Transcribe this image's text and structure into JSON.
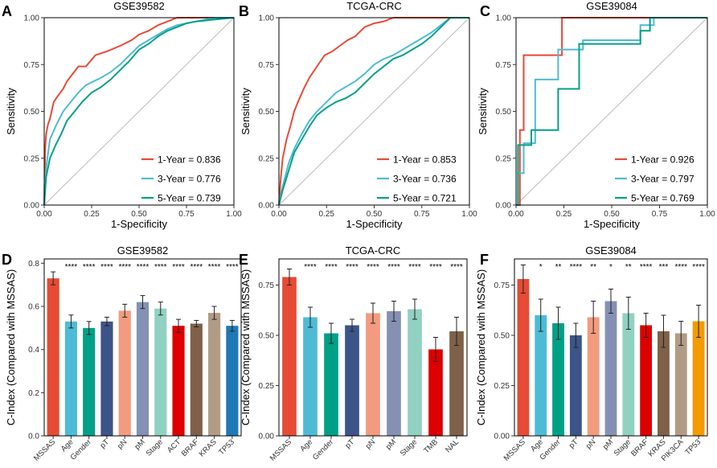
{
  "figure_labels": [
    "A",
    "B",
    "C",
    "D",
    "E",
    "F"
  ],
  "colors": {
    "roc_1yr": "#E64B35",
    "roc_3yr": "#4DBBD5",
    "roc_5yr": "#00A087",
    "diagonal": "#BBBBBB"
  },
  "chart_data": [
    {
      "id": "A",
      "type": "line",
      "title": "GSE39582",
      "xlabel": "1-Specificity",
      "ylabel": "Sensitivity",
      "xlim": [
        0,
        1
      ],
      "ylim": [
        0,
        1
      ],
      "xticks": [
        "0.00",
        "0.25",
        "0.50",
        "0.75",
        "1.00"
      ],
      "yticks": [
        "0.00",
        "0.25",
        "0.50",
        "0.75",
        "1.00"
      ],
      "legend_position": "bottom-right",
      "series": [
        {
          "name": "1-Year = 0.836",
          "color": "#E64B35",
          "x": [
            0,
            0.005,
            0.01,
            0.02,
            0.03,
            0.05,
            0.07,
            0.1,
            0.12,
            0.15,
            0.18,
            0.22,
            0.27,
            0.33,
            0.4,
            0.46,
            0.5,
            0.55,
            0.6,
            0.65,
            0.7,
            0.75,
            1.0
          ],
          "y": [
            0,
            0.3,
            0.38,
            0.43,
            0.46,
            0.55,
            0.58,
            0.62,
            0.66,
            0.7,
            0.74,
            0.74,
            0.8,
            0.82,
            0.85,
            0.88,
            0.91,
            0.93,
            0.96,
            0.98,
            1.0,
            1.0,
            1.0
          ]
        },
        {
          "name": "3-Year = 0.776",
          "color": "#4DBBD5",
          "x": [
            0,
            0.01,
            0.03,
            0.06,
            0.1,
            0.14,
            0.18,
            0.22,
            0.26,
            0.3,
            0.35,
            0.4,
            0.45,
            0.5,
            0.55,
            0.6,
            0.65,
            0.7,
            0.75,
            0.8,
            0.9,
            1.0
          ],
          "y": [
            0,
            0.2,
            0.35,
            0.42,
            0.5,
            0.55,
            0.6,
            0.64,
            0.66,
            0.68,
            0.71,
            0.75,
            0.8,
            0.85,
            0.88,
            0.91,
            0.94,
            0.96,
            0.97,
            0.98,
            1.0,
            1.0
          ]
        },
        {
          "name": "5-Year = 0.739",
          "color": "#00A087",
          "x": [
            0,
            0.01,
            0.03,
            0.06,
            0.09,
            0.12,
            0.16,
            0.2,
            0.25,
            0.3,
            0.35,
            0.4,
            0.45,
            0.5,
            0.55,
            0.6,
            0.65,
            0.7,
            0.75,
            0.8,
            0.9,
            1.0
          ],
          "y": [
            0,
            0.15,
            0.25,
            0.32,
            0.38,
            0.45,
            0.5,
            0.55,
            0.6,
            0.63,
            0.67,
            0.72,
            0.77,
            0.83,
            0.86,
            0.9,
            0.93,
            0.95,
            0.97,
            0.98,
            0.99,
            1.0
          ]
        }
      ]
    },
    {
      "id": "B",
      "type": "line",
      "title": "TCGA-CRC",
      "xlabel": "1-Specificity",
      "ylabel": "Sensitivity",
      "xlim": [
        0,
        1
      ],
      "ylim": [
        0,
        1
      ],
      "xticks": [
        "0.00",
        "0.25",
        "0.50",
        "0.75",
        "1.00"
      ],
      "yticks": [
        "0.00",
        "0.25",
        "0.50",
        "0.75",
        "1.00"
      ],
      "legend_position": "bottom-right",
      "series": [
        {
          "name": "1-Year = 0.853",
          "color": "#E64B35",
          "x": [
            0,
            0.01,
            0.02,
            0.04,
            0.06,
            0.08,
            0.1,
            0.13,
            0.16,
            0.2,
            0.24,
            0.28,
            0.32,
            0.36,
            0.4,
            0.45,
            0.5,
            0.55,
            0.6,
            0.65,
            0.7,
            1.0
          ],
          "y": [
            0,
            0.15,
            0.25,
            0.35,
            0.42,
            0.5,
            0.55,
            0.62,
            0.68,
            0.74,
            0.8,
            0.82,
            0.85,
            0.88,
            0.9,
            0.95,
            0.97,
            0.98,
            1.0,
            1.0,
            1.0,
            1.0
          ]
        },
        {
          "name": "3-Year = 0.736",
          "color": "#4DBBD5",
          "x": [
            0,
            0.02,
            0.05,
            0.08,
            0.12,
            0.16,
            0.2,
            0.25,
            0.3,
            0.35,
            0.4,
            0.45,
            0.5,
            0.55,
            0.6,
            0.65,
            0.7,
            0.75,
            0.8,
            0.85,
            0.9,
            1.0
          ],
          "y": [
            0,
            0.1,
            0.22,
            0.3,
            0.38,
            0.45,
            0.5,
            0.55,
            0.6,
            0.63,
            0.66,
            0.7,
            0.75,
            0.78,
            0.8,
            0.83,
            0.86,
            0.89,
            0.92,
            0.96,
            1.0,
            1.0
          ]
        },
        {
          "name": "5-Year = 0.721",
          "color": "#00A087",
          "x": [
            0,
            0.02,
            0.05,
            0.08,
            0.12,
            0.16,
            0.2,
            0.25,
            0.3,
            0.35,
            0.4,
            0.45,
            0.5,
            0.55,
            0.6,
            0.65,
            0.7,
            0.75,
            0.8,
            0.85,
            0.9,
            1.0
          ],
          "y": [
            0,
            0.08,
            0.18,
            0.28,
            0.35,
            0.42,
            0.48,
            0.52,
            0.55,
            0.57,
            0.6,
            0.65,
            0.7,
            0.74,
            0.78,
            0.8,
            0.83,
            0.86,
            0.9,
            0.95,
            1.0,
            1.0
          ]
        }
      ]
    },
    {
      "id": "C",
      "type": "line",
      "title": "GSE39084",
      "xlabel": "1-Specificity",
      "ylabel": "Sensitivity",
      "xlim": [
        0,
        1
      ],
      "ylim": [
        0,
        1
      ],
      "xticks": [
        "0.00",
        "0.25",
        "0.50",
        "0.75",
        "1.00"
      ],
      "yticks": [
        "0.00",
        "0.25",
        "0.50",
        "0.75",
        "1.00"
      ],
      "legend_position": "bottom-right",
      "series": [
        {
          "name": "1-Year = 0.926",
          "color": "#E64B35",
          "x": [
            0,
            0.02,
            0.02,
            0.04,
            0.04,
            0.24,
            0.24,
            1.0
          ],
          "y": [
            0,
            0,
            0.4,
            0.4,
            0.8,
            0.8,
            1.0,
            1.0
          ]
        },
        {
          "name": "3-Year = 0.797",
          "color": "#4DBBD5",
          "x": [
            0,
            0.01,
            0.01,
            0.04,
            0.04,
            0.1,
            0.1,
            0.22,
            0.22,
            0.35,
            0.35,
            0.65,
            0.65,
            0.72,
            0.72,
            1.0
          ],
          "y": [
            0,
            0,
            0.17,
            0.17,
            0.33,
            0.33,
            0.67,
            0.67,
            0.83,
            0.83,
            0.88,
            0.88,
            0.96,
            0.96,
            1.0,
            1.0
          ]
        },
        {
          "name": "5-Year = 0.769",
          "color": "#00A087",
          "x": [
            0,
            0.01,
            0.01,
            0.08,
            0.08,
            0.22,
            0.22,
            0.33,
            0.33,
            0.65,
            0.65,
            0.7,
            0.7,
            1.0
          ],
          "y": [
            0,
            0,
            0.32,
            0.32,
            0.4,
            0.4,
            0.62,
            0.62,
            0.86,
            0.86,
            0.93,
            0.93,
            1.0,
            1.0
          ]
        }
      ]
    },
    {
      "id": "D",
      "type": "bar",
      "title": "GSE39582",
      "ylabel": "C-Index (Compared with MSSAS)",
      "ylim": [
        0,
        0.82
      ],
      "yticks": [
        0.0,
        0.2,
        0.4,
        0.6,
        0.8
      ],
      "ytick_labels": [
        "0.0",
        "0.2",
        "0.4",
        "0.6",
        "0.8"
      ],
      "categories": [
        "MSSAS",
        "Age",
        "Gender",
        "pT",
        "pN",
        "pM",
        "Stage",
        "ACT",
        "BRAF",
        "KRAS",
        "TP53"
      ],
      "values": [
        0.73,
        0.53,
        0.5,
        0.53,
        0.58,
        0.62,
        0.59,
        0.51,
        0.52,
        0.57,
        0.51
      ],
      "errors": [
        0.03,
        0.03,
        0.03,
        0.02,
        0.03,
        0.03,
        0.03,
        0.03,
        0.015,
        0.03,
        0.025
      ],
      "significance": [
        "",
        "****",
        "****",
        "****",
        "****",
        "****",
        "****",
        "****",
        "****",
        "****",
        "****"
      ],
      "colors": [
        "#E64B35",
        "#4DBBD5",
        "#00A087",
        "#3C5488",
        "#F39B7F",
        "#8491B4",
        "#91D1C2",
        "#DC0000",
        "#7E6148",
        "#B09C85",
        "#1F78B4"
      ]
    },
    {
      "id": "E",
      "type": "bar",
      "title": "TCGA-CRC",
      "ylabel": "C-Index (Compared with MSSAS)",
      "ylim": [
        0,
        0.88
      ],
      "yticks": [
        0.0,
        0.25,
        0.5,
        0.75
      ],
      "ytick_labels": [
        "0.00",
        "0.25",
        "0.50",
        "0.75"
      ],
      "categories": [
        "MSSAS",
        "Age",
        "Gender",
        "pT",
        "pN",
        "pM",
        "Stage",
        "TMB",
        "NAL"
      ],
      "values": [
        0.79,
        0.59,
        0.51,
        0.55,
        0.61,
        0.62,
        0.63,
        0.43,
        0.52
      ],
      "errors": [
        0.04,
        0.05,
        0.05,
        0.03,
        0.05,
        0.05,
        0.05,
        0.06,
        0.07
      ],
      "significance": [
        "",
        "****",
        "****",
        "****",
        "****",
        "****",
        "****",
        "****",
        "****"
      ],
      "colors": [
        "#E64B35",
        "#4DBBD5",
        "#00A087",
        "#3C5488",
        "#F39B7F",
        "#8491B4",
        "#91D1C2",
        "#DC0000",
        "#7E6148"
      ]
    },
    {
      "id": "F",
      "type": "bar",
      "title": "GSE39084",
      "ylabel": "C-Index (Compared with MSSAS)",
      "ylim": [
        0,
        0.88
      ],
      "yticks": [
        0.0,
        0.25,
        0.5,
        0.75
      ],
      "ytick_labels": [
        "0.00",
        "0.25",
        "0.50",
        "0.75"
      ],
      "categories": [
        "MSSAS",
        "Age",
        "Gender",
        "pT",
        "pN",
        "pM",
        "Stage",
        "BRAF",
        "KRAS",
        "PIK3CA",
        "TP53"
      ],
      "values": [
        0.78,
        0.6,
        0.56,
        0.5,
        0.59,
        0.67,
        0.61,
        0.55,
        0.52,
        0.51,
        0.57
      ],
      "errors": [
        0.07,
        0.08,
        0.08,
        0.06,
        0.08,
        0.06,
        0.08,
        0.06,
        0.08,
        0.06,
        0.08
      ],
      "significance": [
        "",
        "*",
        "**",
        "****",
        "**",
        "*",
        "**",
        "****",
        "***",
        "****",
        "****"
      ],
      "colors": [
        "#E64B35",
        "#4DBBD5",
        "#00A087",
        "#3C5488",
        "#F39B7F",
        "#8491B4",
        "#91D1C2",
        "#DC0000",
        "#7E6148",
        "#B09C85",
        "#F39B00"
      ]
    }
  ]
}
